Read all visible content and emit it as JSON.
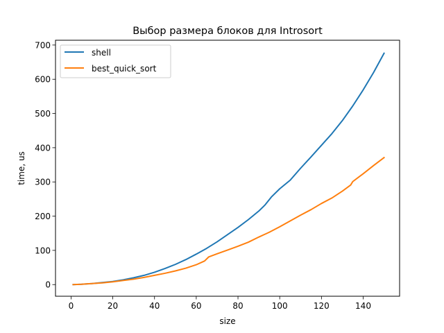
{
  "chart_data": {
    "type": "line",
    "title": "Выбор размера блоков для Introsort",
    "xlabel": "size",
    "ylabel": "time, us",
    "xlim": [
      -7.45,
      157.45
    ],
    "ylim": [
      -34,
      714
    ],
    "xticks": [
      0,
      20,
      40,
      60,
      80,
      100,
      120,
      140
    ],
    "yticks": [
      0,
      100,
      200,
      300,
      400,
      500,
      600,
      700
    ],
    "grid": false,
    "legend_position": "upper left",
    "series": [
      {
        "name": "shell",
        "color": "#1f77b4",
        "x": [
          1,
          5,
          10,
          15,
          20,
          25,
          30,
          35,
          40,
          45,
          50,
          55,
          60,
          65,
          70,
          75,
          80,
          85,
          90,
          93,
          96,
          100,
          105,
          110,
          115,
          120,
          125,
          130,
          135,
          140,
          145,
          150
        ],
        "y": [
          0,
          1,
          3,
          6,
          9,
          14,
          20,
          27,
          36,
          47,
          59,
          73,
          89,
          106,
          125,
          146,
          167,
          190,
          215,
          233,
          256,
          280,
          305,
          340,
          373,
          407,
          441,
          479,
          522,
          569,
          620,
          676
        ]
      },
      {
        "name": "best_quick_sort",
        "color": "#ff7f0e",
        "x": [
          1,
          5,
          10,
          15,
          20,
          25,
          30,
          35,
          40,
          45,
          50,
          55,
          60,
          64,
          66,
          70,
          75,
          80,
          85,
          90,
          95,
          100,
          105,
          110,
          115,
          120,
          125,
          130,
          134,
          135,
          140,
          145,
          150
        ],
        "y": [
          0,
          1,
          3,
          5,
          8,
          12,
          16,
          21,
          27,
          33,
          40,
          48,
          58,
          69,
          81,
          90,
          101,
          112,
          124,
          139,
          153,
          169,
          186,
          203,
          219,
          237,
          253,
          273,
          291,
          301,
          324,
          348,
          371
        ]
      }
    ]
  }
}
